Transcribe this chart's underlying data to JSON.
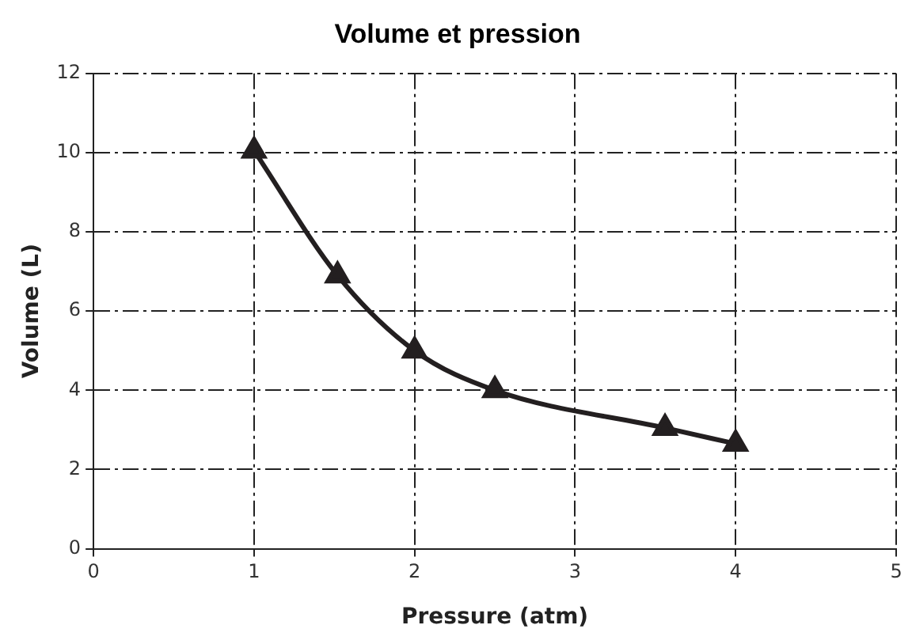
{
  "chart_data": {
    "type": "line",
    "title": "Volume et pression",
    "xlabel": "Pressure (atm)",
    "ylabel": "Volume (L)",
    "x": [
      1,
      1.52,
      2,
      2.5,
      3.56,
      4
    ],
    "series": [
      {
        "color": "#231f20",
        "values": [
          10.05,
          6.9,
          5,
          4,
          3.05,
          2.65
        ]
      }
    ],
    "xlim": [
      0,
      5
    ],
    "xticks": [
      0,
      1,
      2,
      3,
      4,
      5
    ],
    "ylim": [
      0,
      12
    ],
    "yticks": [
      0,
      2,
      4,
      6,
      8,
      10,
      12
    ],
    "grid": true,
    "legend": false,
    "marker": "triangle",
    "line_style": "solid"
  }
}
